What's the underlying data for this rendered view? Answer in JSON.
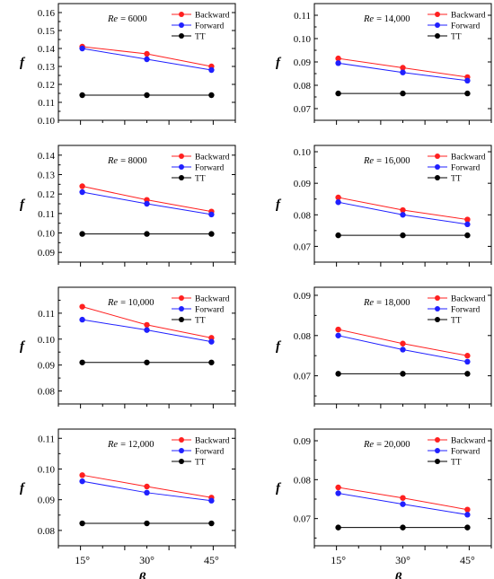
{
  "figure": {
    "xlabel": "β",
    "ylabel": "f",
    "xticks": [
      "15°",
      "30°",
      "45°"
    ]
  },
  "colors": {
    "Backward": "#ff2020",
    "Forward": "#2020ff",
    "TT": "#000000"
  },
  "chart_data": [
    {
      "type": "line",
      "re_prefix": "Re",
      "re_value": "= 6000",
      "categories": [
        "15°",
        "30°",
        "45°"
      ],
      "series": [
        {
          "name": "Backward",
          "values": [
            0.141,
            0.137,
            0.13
          ]
        },
        {
          "name": "Forward",
          "values": [
            0.14,
            0.134,
            0.128
          ]
        },
        {
          "name": "TT",
          "values": [
            0.114,
            0.114,
            0.114
          ]
        }
      ],
      "ylim": [
        0.1,
        0.165
      ],
      "yticks": [
        "0.16",
        "0.15",
        "0.14",
        "0.13",
        "0.12",
        "0.11",
        "0.10"
      ],
      "legend": "top-right"
    },
    {
      "type": "line",
      "re_prefix": "Re",
      "re_value": "= 14,000",
      "categories": [
        "15°",
        "30°",
        "45°"
      ],
      "series": [
        {
          "name": "Backward",
          "values": [
            0.0915,
            0.0875,
            0.0835
          ]
        },
        {
          "name": "Forward",
          "values": [
            0.0895,
            0.0855,
            0.082
          ]
        },
        {
          "name": "TT",
          "values": [
            0.0765,
            0.0765,
            0.0765
          ]
        }
      ],
      "ylim": [
        0.065,
        0.115
      ],
      "yticks": [
        "0.11",
        "0.10",
        "0.09",
        "0.08",
        "0.07"
      ],
      "legend": "top-right"
    },
    {
      "type": "line",
      "re_prefix": "Re",
      "re_value": "= 8000",
      "categories": [
        "15°",
        "30°",
        "45°"
      ],
      "series": [
        {
          "name": "Backward",
          "values": [
            0.124,
            0.117,
            0.111
          ]
        },
        {
          "name": "Forward",
          "values": [
            0.121,
            0.115,
            0.1095
          ]
        },
        {
          "name": "TT",
          "values": [
            0.0995,
            0.0995,
            0.0995
          ]
        }
      ],
      "ylim": [
        0.085,
        0.145
      ],
      "yticks": [
        "0.14",
        "0.13",
        "0.12",
        "0.11",
        "0.10",
        "0.09"
      ],
      "legend": "top-right"
    },
    {
      "type": "line",
      "re_prefix": "Re",
      "re_value": "= 16,000",
      "categories": [
        "15°",
        "30°",
        "45°"
      ],
      "series": [
        {
          "name": "Backward",
          "values": [
            0.0855,
            0.0815,
            0.0785
          ]
        },
        {
          "name": "Forward",
          "values": [
            0.084,
            0.08,
            0.077
          ]
        },
        {
          "name": "TT",
          "values": [
            0.0735,
            0.0735,
            0.0735
          ]
        }
      ],
      "ylim": [
        0.065,
        0.102
      ],
      "yticks": [
        "0.10",
        "0.09",
        "0.08",
        "0.07"
      ],
      "legend": "top-right"
    },
    {
      "type": "line",
      "re_prefix": "Re",
      "re_value": "= 10,000",
      "categories": [
        "15°",
        "30°",
        "45°"
      ],
      "series": [
        {
          "name": "Backward",
          "values": [
            0.1125,
            0.1055,
            0.1005
          ]
        },
        {
          "name": "Forward",
          "values": [
            0.1075,
            0.1035,
            0.099
          ]
        },
        {
          "name": "TT",
          "values": [
            0.091,
            0.091,
            0.091
          ]
        }
      ],
      "ylim": [
        0.075,
        0.12
      ],
      "yticks": [
        "0.11",
        "0.10",
        "0.09",
        "0.08"
      ],
      "legend": "top-right"
    },
    {
      "type": "line",
      "re_prefix": "Re",
      "re_value": "= 18,000",
      "categories": [
        "15°",
        "30°",
        "45°"
      ],
      "series": [
        {
          "name": "Backward",
          "values": [
            0.0815,
            0.078,
            0.075
          ]
        },
        {
          "name": "Forward",
          "values": [
            0.08,
            0.0765,
            0.0735
          ]
        },
        {
          "name": "TT",
          "values": [
            0.0705,
            0.0705,
            0.0705
          ]
        }
      ],
      "ylim": [
        0.063,
        0.092
      ],
      "yticks": [
        "0.09",
        "0.08",
        "0.07"
      ],
      "legend": "top-right"
    },
    {
      "type": "line",
      "re_prefix": "Re",
      "re_value": "= 12,000",
      "categories": [
        "15°",
        "30°",
        "45°"
      ],
      "series": [
        {
          "name": "Backward",
          "values": [
            0.098,
            0.0943,
            0.0907
          ]
        },
        {
          "name": "Forward",
          "values": [
            0.096,
            0.0923,
            0.0897
          ]
        },
        {
          "name": "TT",
          "values": [
            0.0823,
            0.0823,
            0.0823
          ]
        }
      ],
      "ylim": [
        0.075,
        0.113
      ],
      "yticks": [
        "0.11",
        "0.10",
        "0.09",
        "0.08"
      ],
      "legend": "top-right"
    },
    {
      "type": "line",
      "re_prefix": "Re",
      "re_value": "= 20,000",
      "categories": [
        "15°",
        "30°",
        "45°"
      ],
      "series": [
        {
          "name": "Backward",
          "values": [
            0.078,
            0.0753,
            0.0723
          ]
        },
        {
          "name": "Forward",
          "values": [
            0.0765,
            0.0737,
            0.071
          ]
        },
        {
          "name": "TT",
          "values": [
            0.0677,
            0.0677,
            0.0677
          ]
        }
      ],
      "ylim": [
        0.063,
        0.093
      ],
      "yticks": [
        "0.09",
        "0.08",
        "0.07"
      ],
      "legend": "top-right"
    }
  ]
}
